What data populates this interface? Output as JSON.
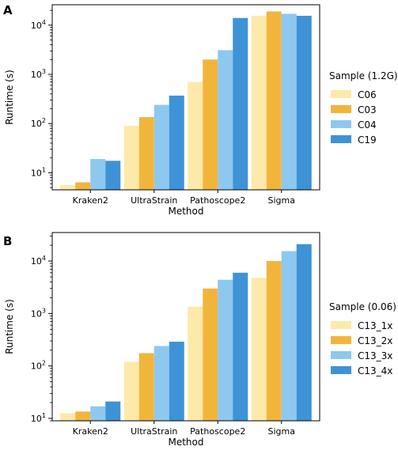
{
  "chart_data": [
    {
      "type": "bar",
      "panel_label": "A",
      "categories": [
        "Kraken2",
        "UltraStrain",
        "Pathoscope2",
        "Sigma"
      ],
      "series": [
        {
          "name": "C06",
          "values": [
            5.6,
            90,
            700,
            15500
          ]
        },
        {
          "name": "C03",
          "values": [
            6.4,
            135,
            2000,
            19000
          ]
        },
        {
          "name": "C04",
          "values": [
            19,
            240,
            3100,
            17000
          ]
        },
        {
          "name": "C19",
          "values": [
            17.5,
            370,
            14000,
            15500
          ]
        }
      ],
      "xlabel": "Method",
      "ylabel": "Runtime (s)",
      "yscale": "log",
      "ylim": [
        4.5,
        26000
      ],
      "legend_title": "Sample (1.2G)",
      "legend_position": "right",
      "grid": false,
      "colors": [
        "#fde9a9",
        "#f2b53c",
        "#8dc8ef",
        "#3d93d6"
      ]
    },
    {
      "type": "bar",
      "panel_label": "B",
      "categories": [
        "Kraken2",
        "UltraStrain",
        "Pathoscope2",
        "Sigma"
      ],
      "series": [
        {
          "name": "C13_1x",
          "values": [
            12.5,
            120,
            1350,
            4800
          ]
        },
        {
          "name": "C13_2x",
          "values": [
            13.5,
            175,
            3000,
            10000
          ]
        },
        {
          "name": "C13_3x",
          "values": [
            17,
            240,
            4400,
            15500
          ]
        },
        {
          "name": "C13_4x",
          "values": [
            21,
            290,
            6000,
            21000
          ]
        }
      ],
      "xlabel": "Method",
      "ylabel": "Runtime (s)",
      "yscale": "log",
      "ylim": [
        9,
        35000
      ],
      "legend_title": "Sample (0.06)",
      "legend_position": "right",
      "grid": false,
      "colors": [
        "#fde9a9",
        "#f2b53c",
        "#8dc8ef",
        "#3d93d6"
      ]
    }
  ]
}
